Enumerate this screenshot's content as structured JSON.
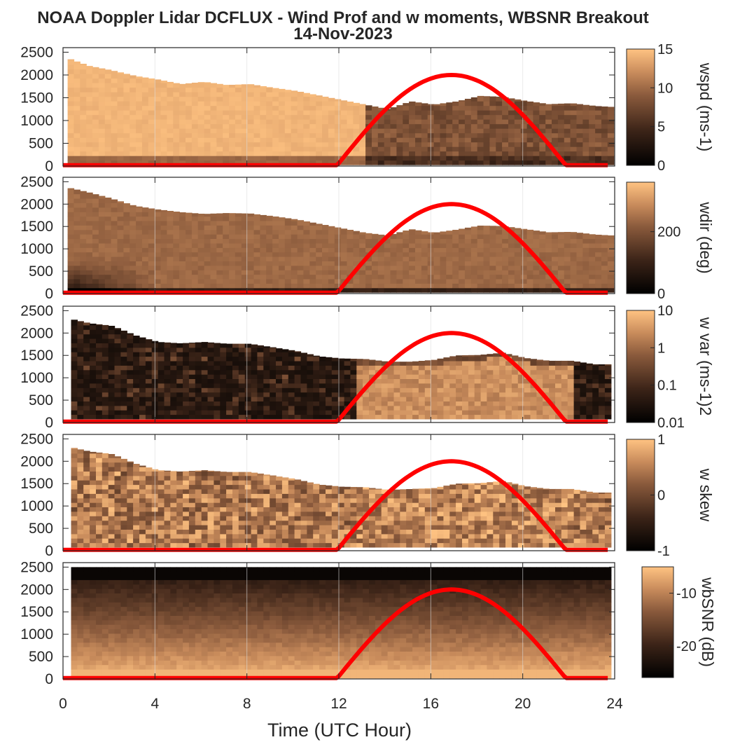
{
  "figure": {
    "title_line1": "NOAA Doppler Lidar DCFLUX - Wind Prof and w moments, WBSNR Breakout",
    "title_line2": "14-Nov-2023",
    "xlabel": "Time (UTC Hour)",
    "x_ticks": [
      "0",
      "4",
      "8",
      "12",
      "16",
      "20",
      "24"
    ],
    "y_ticks": [
      "0",
      "500",
      "1000",
      "1500",
      "2000",
      "2500"
    ],
    "ylabel_partial": ""
  },
  "chart_data": [
    {
      "type": "heatmap",
      "name": "wspd",
      "colorbar_label": "wspd (ms-1)",
      "colorbar_ticks": [
        "0",
        "5",
        "10",
        "15"
      ],
      "clim": [
        0,
        15
      ],
      "xlim": [
        0,
        24
      ],
      "ylim": [
        0,
        2600
      ],
      "top_height": [
        [
          0,
          2380
        ],
        [
          1,
          2200
        ],
        [
          2,
          2100
        ],
        [
          3,
          1980
        ],
        [
          4,
          1900
        ],
        [
          5,
          1800
        ],
        [
          6,
          1850
        ],
        [
          7,
          1780
        ],
        [
          8,
          1800
        ],
        [
          9,
          1720
        ],
        [
          10,
          1650
        ],
        [
          11,
          1550
        ],
        [
          12,
          1450
        ],
        [
          13,
          1350
        ],
        [
          14,
          1250
        ],
        [
          15,
          1420
        ],
        [
          16,
          1350
        ],
        [
          17,
          1420
        ],
        [
          18,
          1540
        ],
        [
          19,
          1520
        ],
        [
          20,
          1430
        ],
        [
          21,
          1360
        ],
        [
          22,
          1380
        ],
        [
          23,
          1320
        ],
        [
          23.7,
          1300
        ]
      ],
      "sun_curve": {
        "start_hour": 11.9,
        "peak_hour": 16.9,
        "end_hour": 21.9,
        "peak_height": 2000
      }
    },
    {
      "type": "heatmap",
      "name": "wdir",
      "colorbar_label": "wdir (deg)",
      "colorbar_ticks": [
        "0",
        "200"
      ],
      "clim": [
        0,
        360
      ],
      "xlim": [
        0,
        24
      ],
      "ylim": [
        0,
        2600
      ],
      "top_height": [
        [
          0,
          2380
        ],
        [
          1,
          2260
        ],
        [
          2,
          2120
        ],
        [
          3,
          1960
        ],
        [
          4,
          1880
        ],
        [
          5,
          1820
        ],
        [
          6,
          1780
        ],
        [
          7,
          1800
        ],
        [
          8,
          1790
        ],
        [
          9,
          1730
        ],
        [
          10,
          1660
        ],
        [
          11,
          1560
        ],
        [
          12,
          1460
        ],
        [
          13,
          1360
        ],
        [
          14,
          1300
        ],
        [
          15,
          1440
        ],
        [
          16,
          1360
        ],
        [
          17,
          1430
        ],
        [
          18,
          1520
        ],
        [
          19,
          1510
        ],
        [
          20,
          1440
        ],
        [
          21,
          1370
        ],
        [
          22,
          1380
        ],
        [
          23,
          1320
        ],
        [
          23.7,
          1300
        ]
      ],
      "sun_curve": {
        "start_hour": 11.9,
        "peak_hour": 16.9,
        "end_hour": 21.9,
        "peak_height": 2000
      }
    },
    {
      "type": "heatmap",
      "name": "w var",
      "colorbar_label": "w var (ms-1)2",
      "colorbar_ticks": [
        "0.01",
        "0.1",
        "1",
        "10"
      ],
      "clim": [
        0.01,
        10
      ],
      "log_scale": true,
      "xlim": [
        0,
        24
      ],
      "ylim": [
        0,
        2600
      ],
      "top_height": [
        [
          0,
          2340
        ],
        [
          1,
          2220
        ],
        [
          2,
          2160
        ],
        [
          3,
          1950
        ],
        [
          4,
          1800
        ],
        [
          5,
          1770
        ],
        [
          6,
          1800
        ],
        [
          7,
          1760
        ],
        [
          8,
          1760
        ],
        [
          9,
          1680
        ],
        [
          10,
          1600
        ],
        [
          11,
          1480
        ],
        [
          12,
          1430
        ],
        [
          13,
          1420
        ],
        [
          14,
          1360
        ],
        [
          15,
          1360
        ],
        [
          16,
          1400
        ],
        [
          17,
          1500
        ],
        [
          18,
          1510
        ],
        [
          19,
          1560
        ],
        [
          20,
          1440
        ],
        [
          21,
          1380
        ],
        [
          22,
          1380
        ],
        [
          23,
          1300
        ],
        [
          23.7,
          1300
        ]
      ],
      "sun_curve": {
        "start_hour": 11.9,
        "peak_hour": 16.9,
        "end_hour": 21.9,
        "peak_height": 2000
      }
    },
    {
      "type": "heatmap",
      "name": "w skew",
      "colorbar_label": "w skew",
      "colorbar_ticks": [
        "-1",
        "0",
        "1"
      ],
      "clim": [
        -1,
        1
      ],
      "xlim": [
        0,
        24
      ],
      "ylim": [
        0,
        2600
      ],
      "top_height": [
        [
          0,
          2340
        ],
        [
          1,
          2220
        ],
        [
          2,
          2160
        ],
        [
          3,
          1950
        ],
        [
          4,
          1800
        ],
        [
          5,
          1770
        ],
        [
          6,
          1800
        ],
        [
          7,
          1760
        ],
        [
          8,
          1760
        ],
        [
          9,
          1680
        ],
        [
          10,
          1600
        ],
        [
          11,
          1480
        ],
        [
          12,
          1430
        ],
        [
          13,
          1420
        ],
        [
          14,
          1360
        ],
        [
          15,
          1380
        ],
        [
          16,
          1400
        ],
        [
          17,
          1500
        ],
        [
          18,
          1510
        ],
        [
          19,
          1560
        ],
        [
          20,
          1440
        ],
        [
          21,
          1380
        ],
        [
          22,
          1380
        ],
        [
          23,
          1300
        ],
        [
          23.7,
          1300
        ]
      ],
      "sun_curve": {
        "start_hour": 11.9,
        "peak_hour": 16.9,
        "end_hour": 21.9,
        "peak_height": 2000
      }
    },
    {
      "type": "heatmap",
      "name": "wbSNR",
      "colorbar_label": "wbSNR (dB)",
      "colorbar_ticks": [
        "-20",
        "-10"
      ],
      "clim": [
        -26,
        -5
      ],
      "xlim": [
        0,
        24
      ],
      "ylim": [
        0,
        2600
      ],
      "top_height": [
        [
          0,
          2500
        ],
        [
          24,
          2500
        ]
      ],
      "sun_curve": {
        "start_hour": 11.9,
        "peak_hour": 16.9,
        "end_hour": 21.9,
        "peak_height": 2000
      }
    }
  ],
  "colors": {
    "sun_curve": "#ff0000",
    "cmap_low": "#000000",
    "cmap_mid": "#8a5a3c",
    "cmap_high": "#ffc382",
    "axes": "#262626",
    "grid": "#dcdcdc"
  }
}
